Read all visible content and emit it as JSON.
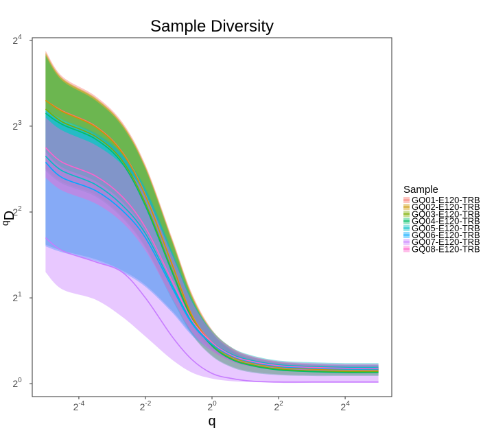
{
  "chart_data": {
    "type": "area",
    "title": "Sample Diversity",
    "xlabel": "q",
    "ylabel_base": "D",
    "ylabel_sup": "q",
    "x_scale": "log2",
    "y_scale": "log2",
    "xlim_log2": [
      -5.4,
      5.4
    ],
    "ylim_log2": [
      -0.15,
      4.03
    ],
    "x_ticks": [
      {
        "exp": -4,
        "base": "2",
        "sup": "-4"
      },
      {
        "exp": -2,
        "base": "2",
        "sup": "-2"
      },
      {
        "exp": 0,
        "base": "2",
        "sup": "0"
      },
      {
        "exp": 2,
        "base": "2",
        "sup": "2"
      },
      {
        "exp": 4,
        "base": "2",
        "sup": "4"
      }
    ],
    "y_ticks": [
      {
        "exp": 0,
        "base": "2",
        "sup": "0"
      },
      {
        "exp": 1,
        "base": "2",
        "sup": "1"
      },
      {
        "exp": 2,
        "base": "2",
        "sup": "2"
      },
      {
        "exp": 3,
        "base": "2",
        "sup": "3"
      },
      {
        "exp": 4,
        "base": "2",
        "sup": "4"
      }
    ],
    "grid": false,
    "legend": {
      "title": "Sample",
      "position": "right"
    },
    "q_log2": [
      -5,
      -4.5,
      -3.5,
      -2.7,
      -2,
      -1.2,
      -0.6,
      0,
      0.6,
      1.2,
      2,
      3,
      4,
      5
    ],
    "series": [
      {
        "name": "GQ01-E120-TRB",
        "color": "#F8766D",
        "values_log2": [
          3.3,
          3.18,
          3.0,
          2.7,
          2.2,
          1.4,
          0.8,
          0.48,
          0.32,
          0.25,
          0.2,
          0.18,
          0.17,
          0.17
        ],
        "lower_log2": [
          3.2,
          3.08,
          2.9,
          2.6,
          2.1,
          1.28,
          0.7,
          0.4,
          0.27,
          0.21,
          0.17,
          0.15,
          0.14,
          0.14
        ],
        "upper_log2": [
          3.88,
          3.58,
          3.35,
          3.05,
          2.55,
          1.7,
          1.05,
          0.63,
          0.42,
          0.32,
          0.26,
          0.23,
          0.22,
          0.22
        ]
      },
      {
        "name": "GQ02-E120-TRB",
        "color": "#CD9600",
        "values_log2": [
          3.3,
          3.17,
          2.99,
          2.69,
          2.19,
          1.39,
          0.79,
          0.47,
          0.31,
          0.24,
          0.19,
          0.17,
          0.16,
          0.16
        ],
        "lower_log2": [
          3.19,
          3.07,
          2.89,
          2.59,
          2.09,
          1.27,
          0.69,
          0.39,
          0.26,
          0.2,
          0.16,
          0.14,
          0.13,
          0.13
        ],
        "upper_log2": [
          3.86,
          3.56,
          3.33,
          3.03,
          2.53,
          1.68,
          1.03,
          0.62,
          0.41,
          0.31,
          0.25,
          0.22,
          0.21,
          0.21
        ]
      },
      {
        "name": "GQ03-E120-TRB",
        "color": "#7CAE00",
        "values_log2": [
          3.2,
          3.05,
          2.88,
          2.6,
          2.1,
          1.32,
          0.76,
          0.45,
          0.29,
          0.22,
          0.17,
          0.15,
          0.14,
          0.14
        ],
        "lower_log2": [
          2.5,
          2.35,
          2.2,
          1.95,
          1.6,
          1.0,
          0.58,
          0.33,
          0.2,
          0.14,
          0.11,
          0.1,
          0.1,
          0.1
        ],
        "upper_log2": [
          3.84,
          3.55,
          3.32,
          3.02,
          2.52,
          1.67,
          1.02,
          0.6,
          0.39,
          0.29,
          0.23,
          0.2,
          0.19,
          0.19
        ]
      },
      {
        "name": "GQ04-E120-TRB",
        "color": "#00BE67",
        "values_log2": [
          3.15,
          3.02,
          2.85,
          2.57,
          2.07,
          1.3,
          0.75,
          0.44,
          0.28,
          0.21,
          0.16,
          0.14,
          0.13,
          0.13
        ],
        "lower_log2": [
          2.48,
          2.33,
          2.18,
          1.93,
          1.58,
          0.98,
          0.57,
          0.32,
          0.19,
          0.13,
          0.1,
          0.09,
          0.09,
          0.09
        ],
        "upper_log2": [
          3.82,
          3.53,
          3.3,
          3.0,
          2.5,
          1.65,
          1.0,
          0.59,
          0.38,
          0.28,
          0.22,
          0.19,
          0.18,
          0.18
        ]
      },
      {
        "name": "GQ05-E120-TRB",
        "color": "#00BFC4",
        "values_log2": [
          2.65,
          2.48,
          2.32,
          2.08,
          1.75,
          1.15,
          0.72,
          0.48,
          0.34,
          0.27,
          0.22,
          0.2,
          0.19,
          0.19
        ],
        "lower_log2": [
          1.62,
          1.55,
          1.45,
          1.32,
          1.15,
          0.85,
          0.58,
          0.4,
          0.28,
          0.22,
          0.18,
          0.16,
          0.16,
          0.16
        ],
        "upper_log2": [
          3.2,
          3.08,
          2.92,
          2.68,
          2.28,
          1.55,
          0.98,
          0.62,
          0.42,
          0.33,
          0.27,
          0.25,
          0.24,
          0.24
        ]
      },
      {
        "name": "GQ06-E120-TRB",
        "color": "#00A9FF",
        "values_log2": [
          2.58,
          2.4,
          2.25,
          2.02,
          1.7,
          1.12,
          0.7,
          0.46,
          0.32,
          0.25,
          0.2,
          0.18,
          0.17,
          0.17
        ],
        "lower_log2": [
          1.6,
          1.53,
          1.43,
          1.3,
          1.13,
          0.83,
          0.56,
          0.38,
          0.26,
          0.2,
          0.16,
          0.14,
          0.14,
          0.14
        ],
        "upper_log2": [
          3.18,
          3.06,
          2.9,
          2.66,
          2.26,
          1.53,
          0.96,
          0.6,
          0.4,
          0.31,
          0.25,
          0.23,
          0.22,
          0.22
        ]
      },
      {
        "name": "GQ07-E120-TRB",
        "color": "#C77CFF",
        "values_log2": [
          1.7,
          1.55,
          1.42,
          1.3,
          1.0,
          0.55,
          0.28,
          0.12,
          0.06,
          0.03,
          0.02,
          0.02,
          0.02,
          0.02
        ],
        "lower_log2": [
          1.3,
          1.1,
          0.98,
          0.78,
          0.55,
          0.28,
          0.13,
          0.06,
          0.03,
          0.02,
          0.01,
          0.01,
          0.01,
          0.01
        ],
        "upper_log2": [
          2.7,
          2.52,
          2.36,
          2.12,
          1.78,
          1.18,
          0.73,
          0.48,
          0.34,
          0.27,
          0.22,
          0.2,
          0.19,
          0.19
        ]
      },
      {
        "name": "GQ08-E120-TRB",
        "color": "#FF61CC",
        "values_log2": [
          2.75,
          2.58,
          2.42,
          2.18,
          1.82,
          1.2,
          0.74,
          0.48,
          0.33,
          0.26,
          0.21,
          0.19,
          0.18,
          0.18
        ],
        "lower_log2": [
          2.4,
          2.25,
          2.1,
          1.88,
          1.55,
          1.0,
          0.6,
          0.38,
          0.26,
          0.2,
          0.16,
          0.14,
          0.14,
          0.14
        ],
        "upper_log2": [
          3.1,
          2.95,
          2.78,
          2.55,
          2.2,
          1.5,
          0.95,
          0.6,
          0.41,
          0.32,
          0.26,
          0.24,
          0.23,
          0.23
        ]
      }
    ]
  }
}
